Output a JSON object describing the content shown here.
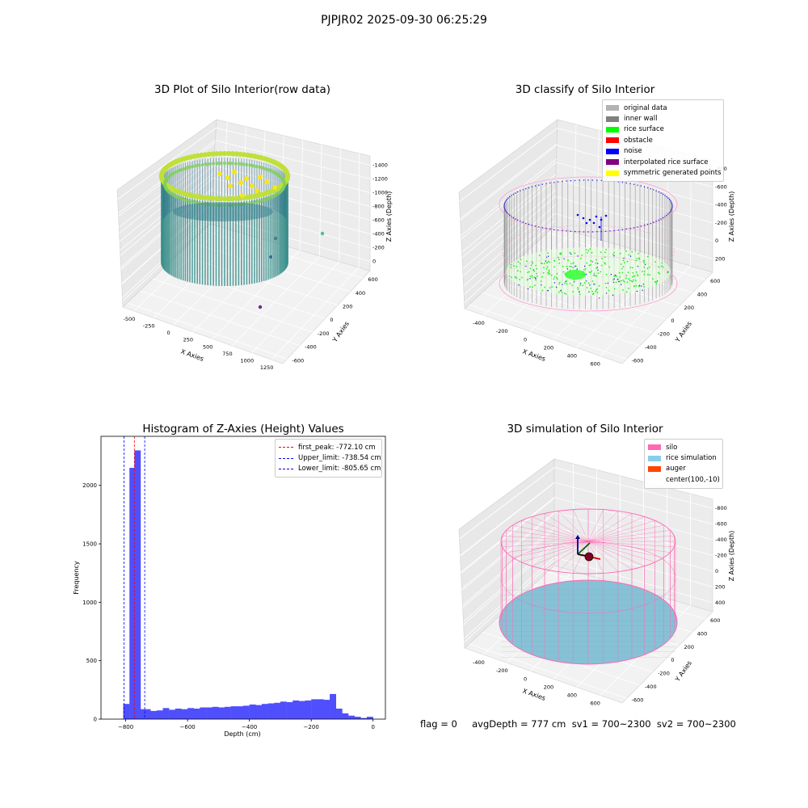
{
  "figure": {
    "title": "PJPJR02 2025-09-30 06:25:29",
    "status_line": "flag = 0     avgDepth = 777 cm  sv1 = 700~2300  sv2 = 700~2300"
  },
  "chart_data": [
    {
      "type": "scatter",
      "subtype": "3d",
      "title": "3D Plot of Silo Interior(row data)",
      "xlabel": "X Axies",
      "ylabel": "Y Axies",
      "zlabel": "Z Axies (Depth)",
      "xticks": [
        "-500",
        "-250",
        "0",
        "250",
        "500",
        "750",
        "1000",
        "1250"
      ],
      "yticks": [
        "-600",
        "-400",
        "-200",
        "0",
        "200",
        "400",
        "600"
      ],
      "zticks": [
        "-1400",
        "-1200",
        "-1000",
        "-800",
        "-600",
        "-400",
        "-200",
        "0"
      ],
      "xlim": [
        -600,
        1350
      ],
      "ylim": [
        -650,
        700
      ],
      "zlim": [
        -1450,
        50
      ],
      "colormap": "viridis",
      "grid": true
    },
    {
      "type": "scatter",
      "subtype": "3d",
      "title": "3D classify of Silo Interior",
      "xlabel": "X Axies",
      "ylabel": "Y Axies",
      "zlabel": "Z Axies (Depth)",
      "xticks": [
        "-400",
        "-200",
        "0",
        "200",
        "400",
        "600"
      ],
      "yticks": [
        "-600",
        "-400",
        "-200",
        "0",
        "200",
        "400",
        "600"
      ],
      "zticks": [
        "-800",
        "-600",
        "-400",
        "-200",
        "0",
        "200"
      ],
      "xlim": [
        -550,
        750
      ],
      "ylim": [
        -650,
        700
      ],
      "zlim": [
        -900,
        250
      ],
      "grid": true,
      "legend_position": "top-right",
      "series": [
        {
          "name": "original data",
          "color": "#b3b3b3"
        },
        {
          "name": "inner wall",
          "color": "#808080"
        },
        {
          "name": "rice surface",
          "color": "#00ff00"
        },
        {
          "name": "obstacle",
          "color": "#ff0000"
        },
        {
          "name": "noise",
          "color": "#0000ff"
        },
        {
          "name": "interpolated rice surface",
          "color": "#800080"
        },
        {
          "name": "symmetric generated points",
          "color": "#ffff00"
        }
      ]
    },
    {
      "type": "bar",
      "subtype": "histogram",
      "title": "Histogram of Z-Axies (Height) Values",
      "xlabel": "Depth (cm)",
      "ylabel": "Frequency",
      "xlim": [
        -880,
        40
      ],
      "ylim": [
        0,
        2420
      ],
      "xticks": [
        -800,
        -600,
        -400,
        -200,
        0
      ],
      "yticks": [
        0,
        500,
        1000,
        1500,
        2000
      ],
      "bin_width": 20,
      "bar_color": "#4f4ffe",
      "bins": [
        {
          "x0": -808,
          "count": 130
        },
        {
          "x0": -788,
          "count": 2150
        },
        {
          "x0": -772,
          "count": 2300
        },
        {
          "x0": -756,
          "count": 85
        },
        {
          "x0": -740,
          "count": 85
        },
        {
          "x0": -720,
          "count": 70
        },
        {
          "x0": -700,
          "count": 75
        },
        {
          "x0": -680,
          "count": 95
        },
        {
          "x0": -660,
          "count": 80
        },
        {
          "x0": -640,
          "count": 90
        },
        {
          "x0": -620,
          "count": 85
        },
        {
          "x0": -600,
          "count": 95
        },
        {
          "x0": -580,
          "count": 90
        },
        {
          "x0": -560,
          "count": 100
        },
        {
          "x0": -540,
          "count": 100
        },
        {
          "x0": -520,
          "count": 105
        },
        {
          "x0": -500,
          "count": 100
        },
        {
          "x0": -480,
          "count": 105
        },
        {
          "x0": -460,
          "count": 110
        },
        {
          "x0": -440,
          "count": 110
        },
        {
          "x0": -420,
          "count": 115
        },
        {
          "x0": -400,
          "count": 125
        },
        {
          "x0": -380,
          "count": 120
        },
        {
          "x0": -360,
          "count": 130
        },
        {
          "x0": -340,
          "count": 135
        },
        {
          "x0": -320,
          "count": 140
        },
        {
          "x0": -300,
          "count": 150
        },
        {
          "x0": -280,
          "count": 145
        },
        {
          "x0": -260,
          "count": 160
        },
        {
          "x0": -240,
          "count": 155
        },
        {
          "x0": -220,
          "count": 160
        },
        {
          "x0": -200,
          "count": 170
        },
        {
          "x0": -180,
          "count": 170
        },
        {
          "x0": -160,
          "count": 165
        },
        {
          "x0": -140,
          "count": 215
        },
        {
          "x0": -120,
          "count": 90
        },
        {
          "x0": -100,
          "count": 50
        },
        {
          "x0": -80,
          "count": 30
        },
        {
          "x0": -60,
          "count": 20
        },
        {
          "x0": -40,
          "count": 10
        },
        {
          "x0": -20,
          "count": 20
        }
      ],
      "lines": [
        {
          "label": "first_peak: -772.10 cm",
          "x": -772.1,
          "color": "#ff0000"
        },
        {
          "label": "Upper_limit: -738.54 cm",
          "x": -738.54,
          "color": "#0000ff"
        },
        {
          "label": "Lower_limit: -805.65 cm",
          "x": -805.65,
          "color": "#0000ff"
        }
      ],
      "legend_position": "top-right",
      "grid": false
    },
    {
      "type": "scatter",
      "subtype": "3d",
      "title": "3D simulation of Silo Interior",
      "xlabel": "X Axies",
      "ylabel": "Y Axies",
      "zlabel": "Z Axies (Depth)",
      "xticks": [
        "-400",
        "-200",
        "0",
        "200",
        "400",
        "600"
      ],
      "yticks": [
        "-600",
        "-400",
        "-200",
        "0",
        "200",
        "400",
        "600"
      ],
      "zticks": [
        "-800",
        "-600",
        "-400",
        "-200",
        "0",
        "200",
        "400"
      ],
      "xlim": [
        -550,
        750
      ],
      "ylim": [
        -650,
        700
      ],
      "zlim": [
        -900,
        450
      ],
      "grid": true,
      "legend_position": "top-right",
      "series": [
        {
          "name": "silo",
          "color": "#ff69b4"
        },
        {
          "name": "rice simulation",
          "color": "#87ceeb"
        },
        {
          "name": "auger",
          "color": "#ff4500"
        },
        {
          "name": "center(100,-10)",
          "color": "#ffffff"
        }
      ]
    }
  ]
}
